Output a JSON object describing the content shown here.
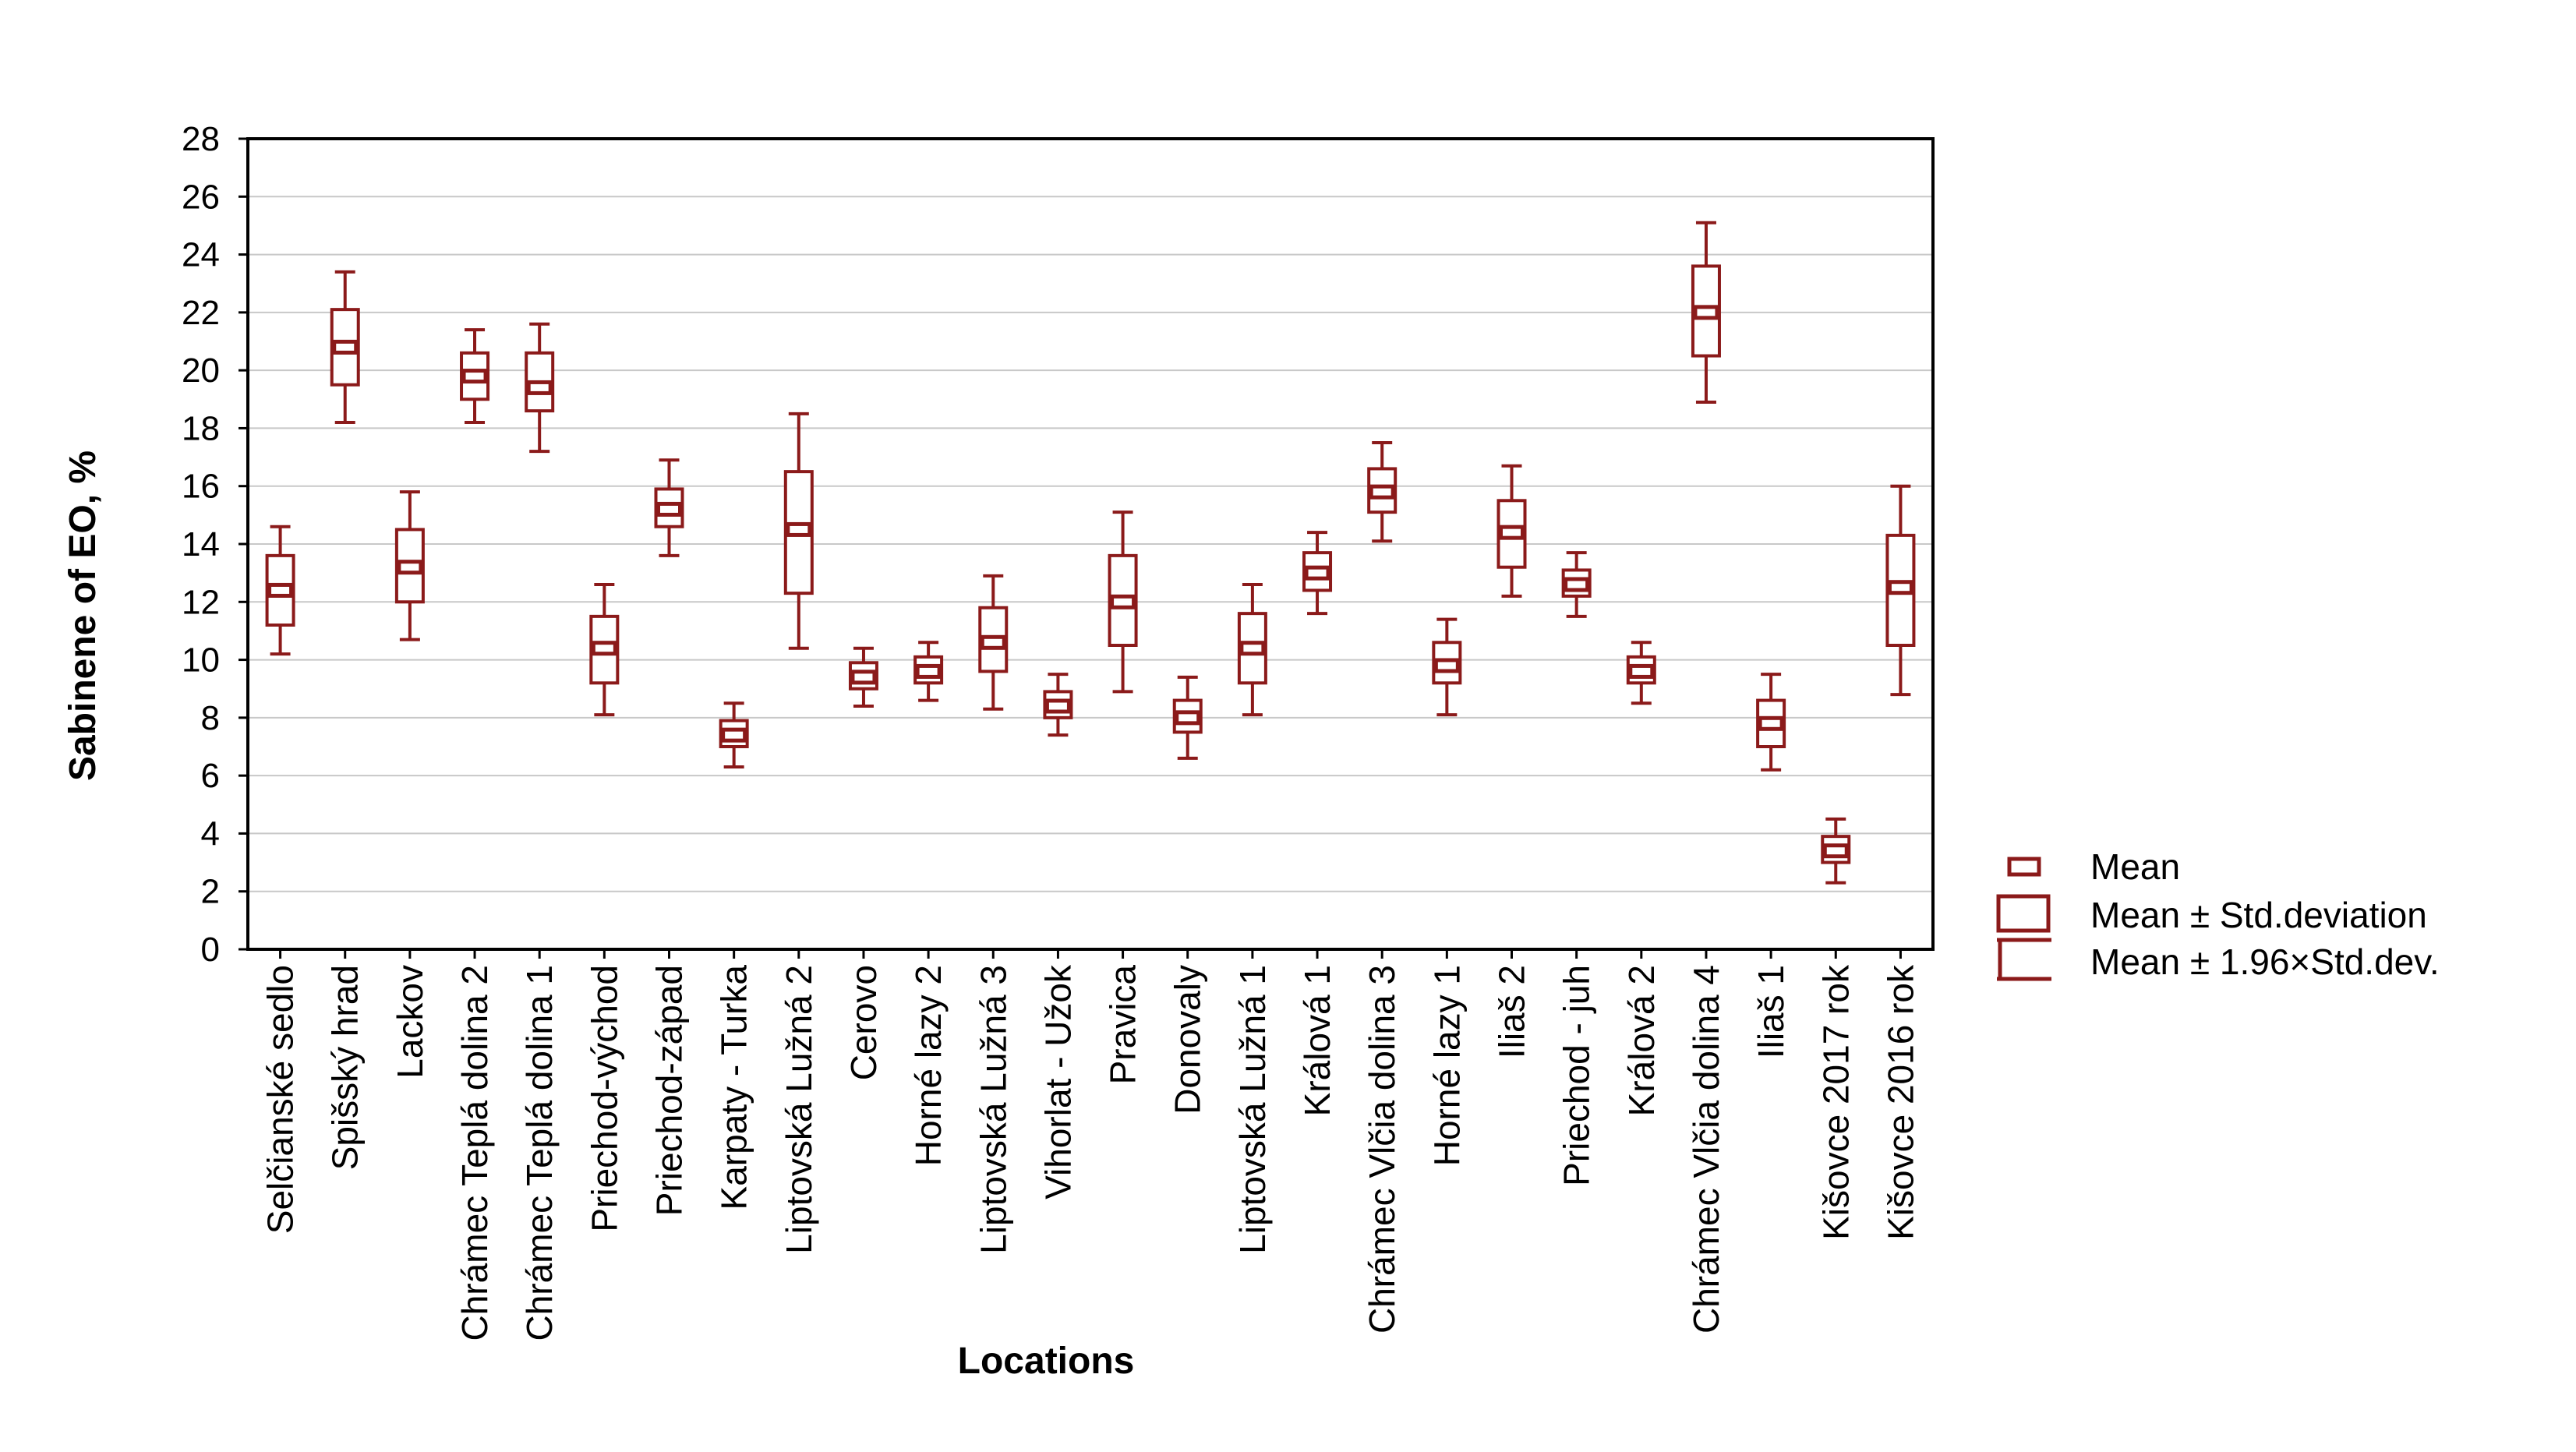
{
  "chart_data": {
    "type": "boxplot",
    "xlabel": "Locations",
    "ylabel": "Sabinene of EO, %",
    "ylim": [
      0,
      28
    ],
    "yticks": [
      0,
      2,
      4,
      6,
      8,
      10,
      12,
      14,
      16,
      18,
      20,
      22,
      24,
      26,
      28
    ],
    "grid": true,
    "color": "#8b1a1a",
    "legend": {
      "position": "right",
      "items": [
        {
          "symbol": "mean",
          "label": "Mean"
        },
        {
          "symbol": "box",
          "label": "Mean ± Std.deviation"
        },
        {
          "symbol": "whisker",
          "label": "Mean ± 1.96×Std.dev."
        }
      ]
    },
    "categories": [
      "Selčianské sedlo",
      "Spišský hrad",
      "Lackov",
      "Chrámec Teplá dolina 2",
      "Chrámec Teplá dolina 1",
      "Priechod-východ",
      "Priechod-západ",
      "Karpaty - Turka",
      "Liptovská Lužná 2",
      "Cerovo",
      "Horné lazy 2",
      "Liptovská Lužná 3",
      "Vihorlat - Užok",
      "Pravica",
      "Donovaly",
      "Liptovská Lužná 1",
      "Králová 1",
      "Chrámec Vlčia dolina 3",
      "Horné lazy 1",
      "Iliaš 2",
      "Priechod - juh",
      "Králová 2",
      "Chrámec Vlčia dolina 4",
      "Iliaš 1",
      "Kišovce 2017 rok",
      "Kišovce 2016 rok"
    ],
    "series": [
      {
        "name": "Mean",
        "values": [
          12.4,
          20.8,
          13.2,
          19.8,
          19.4,
          10.4,
          15.2,
          7.4,
          14.5,
          9.4,
          9.6,
          10.6,
          8.4,
          12.0,
          8.0,
          10.4,
          13.0,
          15.8,
          9.8,
          14.4,
          12.6,
          9.6,
          22.0,
          7.8,
          3.4,
          12.5
        ]
      },
      {
        "name": "Mean - Std.deviation",
        "values": [
          11.2,
          19.5,
          12.0,
          19.0,
          18.6,
          9.2,
          14.6,
          7.0,
          12.3,
          9.0,
          9.2,
          9.6,
          8.0,
          10.5,
          7.5,
          9.2,
          12.4,
          15.1,
          9.2,
          13.2,
          12.2,
          9.2,
          20.5,
          7.0,
          3.0,
          10.5
        ]
      },
      {
        "name": "Mean + Std.deviation",
        "values": [
          13.6,
          22.1,
          14.5,
          20.6,
          20.6,
          11.5,
          15.9,
          7.9,
          16.5,
          9.9,
          10.1,
          11.8,
          8.9,
          13.6,
          8.6,
          11.6,
          13.7,
          16.6,
          10.6,
          15.5,
          13.1,
          10.1,
          23.6,
          8.6,
          3.9,
          14.3
        ]
      },
      {
        "name": "Mean - 1.96×Std.dev.",
        "values": [
          10.2,
          18.2,
          10.7,
          18.2,
          17.2,
          8.1,
          13.6,
          6.3,
          10.4,
          8.4,
          8.6,
          8.3,
          7.4,
          8.9,
          6.6,
          8.1,
          11.6,
          14.1,
          8.1,
          12.2,
          11.5,
          8.5,
          18.9,
          6.2,
          2.3,
          8.8
        ]
      },
      {
        "name": "Mean + 1.96×Std.dev.",
        "values": [
          14.6,
          23.4,
          15.8,
          21.4,
          21.6,
          12.6,
          16.9,
          8.5,
          18.5,
          10.4,
          10.6,
          12.9,
          9.5,
          15.1,
          9.4,
          12.6,
          14.4,
          17.5,
          11.4,
          16.7,
          13.7,
          10.6,
          25.1,
          9.5,
          4.5,
          16.0
        ]
      }
    ]
  }
}
